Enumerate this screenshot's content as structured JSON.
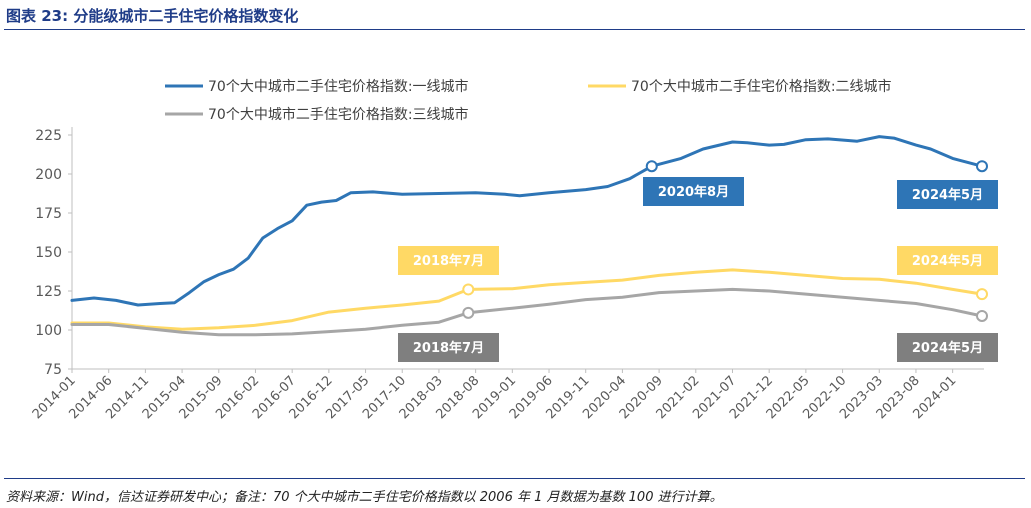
{
  "figure_title": "图表 23:  分能级城市二手住宅价格指数变化",
  "source_note": "资料来源：Wind，信达证券研发中心；备注：70 个大中城市二手住宅价格指数以 2006 年 1 月数据为基数 100 进行计算。",
  "colors": {
    "tier1": "#2e75b6",
    "tier2": "#ffd965",
    "tier3": "#a6a6a6",
    "title": "#1f3c88",
    "tier1_box": "#2e75b6",
    "tier2_box": "#ffd965",
    "tier3_box": "#7f7f7f"
  },
  "chart_data": {
    "type": "line",
    "ylim": [
      75,
      225
    ],
    "yticks": [
      75,
      100,
      125,
      150,
      175,
      200,
      225
    ],
    "xlabel": "",
    "ylabel": "",
    "legend_position": "top",
    "grid": false,
    "x_tick_labels": [
      "2014-01",
      "2014-06",
      "2014-11",
      "2015-04",
      "2015-09",
      "2016-02",
      "2016-07",
      "2016-12",
      "2017-05",
      "2017-10",
      "2018-03",
      "2018-08",
      "2019-01",
      "2019-06",
      "2019-11",
      "2020-04",
      "2020-09",
      "2021-02",
      "2021-07",
      "2021-12",
      "2022-05",
      "2022-10",
      "2023-03",
      "2023-08",
      "2024-01"
    ],
    "start_month": "2014-01",
    "end_month": "2024-05",
    "series": [
      {
        "name": "70个大中城市二手住宅价格指数:一线城市",
        "key": "tier1",
        "points": [
          [
            "2014-01",
            119
          ],
          [
            "2014-04",
            120.5
          ],
          [
            "2014-07",
            119
          ],
          [
            "2014-10",
            116
          ],
          [
            "2015-01",
            117
          ],
          [
            "2015-03",
            117.5
          ],
          [
            "2015-05",
            124
          ],
          [
            "2015-07",
            131
          ],
          [
            "2015-09",
            135.5
          ],
          [
            "2015-11",
            139
          ],
          [
            "2016-01",
            146
          ],
          [
            "2016-03",
            159
          ],
          [
            "2016-05",
            165
          ],
          [
            "2016-07",
            170
          ],
          [
            "2016-09",
            180
          ],
          [
            "2016-11",
            182
          ],
          [
            "2017-01",
            183
          ],
          [
            "2017-03",
            188
          ],
          [
            "2017-06",
            188.5
          ],
          [
            "2017-10",
            187
          ],
          [
            "2018-03",
            187.5
          ],
          [
            "2018-08",
            188
          ],
          [
            "2018-12",
            187
          ],
          [
            "2019-02",
            186
          ],
          [
            "2019-06",
            188
          ],
          [
            "2019-11",
            190
          ],
          [
            "2020-02",
            192
          ],
          [
            "2020-05",
            197
          ],
          [
            "2020-08",
            205
          ],
          [
            "2020-12",
            210
          ],
          [
            "2021-03",
            216
          ],
          [
            "2021-07",
            220.5
          ],
          [
            "2021-09",
            220
          ],
          [
            "2021-12",
            218.5
          ],
          [
            "2022-02",
            219
          ],
          [
            "2022-05",
            222
          ],
          [
            "2022-08",
            222.5
          ],
          [
            "2022-12",
            221
          ],
          [
            "2023-03",
            224
          ],
          [
            "2023-05",
            223
          ],
          [
            "2023-08",
            218.5
          ],
          [
            "2023-10",
            216
          ],
          [
            "2024-01",
            210
          ],
          [
            "2024-03",
            207.5
          ],
          [
            "2024-05",
            205
          ]
        ]
      },
      {
        "name": "70个大中城市二手住宅价格指数:二线城市",
        "key": "tier2",
        "points": [
          [
            "2014-01",
            104.5
          ],
          [
            "2014-06",
            104.5
          ],
          [
            "2014-11",
            102
          ],
          [
            "2015-04",
            100.5
          ],
          [
            "2015-09",
            101.5
          ],
          [
            "2016-02",
            103
          ],
          [
            "2016-07",
            106
          ],
          [
            "2016-12",
            111.5
          ],
          [
            "2017-05",
            114
          ],
          [
            "2017-10",
            116
          ],
          [
            "2018-03",
            118.5
          ],
          [
            "2018-07",
            126
          ],
          [
            "2019-01",
            126.5
          ],
          [
            "2019-06",
            129
          ],
          [
            "2019-11",
            130.5
          ],
          [
            "2020-04",
            132
          ],
          [
            "2020-09",
            135
          ],
          [
            "2021-02",
            137
          ],
          [
            "2021-07",
            138.5
          ],
          [
            "2021-12",
            137
          ],
          [
            "2022-05",
            135
          ],
          [
            "2022-10",
            133
          ],
          [
            "2023-03",
            132.5
          ],
          [
            "2023-08",
            130
          ],
          [
            "2024-01",
            126
          ],
          [
            "2024-05",
            123
          ]
        ]
      },
      {
        "name": "70个大中城市二手住宅价格指数:三线城市",
        "key": "tier3",
        "points": [
          [
            "2014-01",
            103.5
          ],
          [
            "2014-06",
            103.5
          ],
          [
            "2014-11",
            101
          ],
          [
            "2015-04",
            98.5
          ],
          [
            "2015-09",
            97
          ],
          [
            "2016-02",
            97
          ],
          [
            "2016-07",
            97.5
          ],
          [
            "2016-12",
            99
          ],
          [
            "2017-05",
            100.5
          ],
          [
            "2017-10",
            103
          ],
          [
            "2018-03",
            105
          ],
          [
            "2018-07",
            111
          ],
          [
            "2019-01",
            114
          ],
          [
            "2019-06",
            116.5
          ],
          [
            "2019-11",
            119.5
          ],
          [
            "2020-04",
            121
          ],
          [
            "2020-09",
            124
          ],
          [
            "2021-02",
            125
          ],
          [
            "2021-07",
            126
          ],
          [
            "2021-12",
            125
          ],
          [
            "2022-05",
            123
          ],
          [
            "2022-10",
            121
          ],
          [
            "2023-03",
            119
          ],
          [
            "2023-08",
            117
          ],
          [
            "2024-01",
            113
          ],
          [
            "2024-05",
            109
          ]
        ]
      }
    ],
    "annotations": [
      {
        "text": "2020年8月",
        "series": "tier1",
        "x": "2020-08",
        "y": 205
      },
      {
        "text": "2024年5月",
        "series": "tier1",
        "x": "2024-05",
        "y": 205
      },
      {
        "text": "2018年7月",
        "series": "tier2",
        "x": "2018-07",
        "y": 126
      },
      {
        "text": "2024年5月",
        "series": "tier2",
        "x": "2024-05",
        "y": 123
      },
      {
        "text": "2018年7月",
        "series": "tier3",
        "x": "2018-07",
        "y": 111
      },
      {
        "text": "2024年5月",
        "series": "tier3",
        "x": "2024-05",
        "y": 109
      }
    ]
  }
}
